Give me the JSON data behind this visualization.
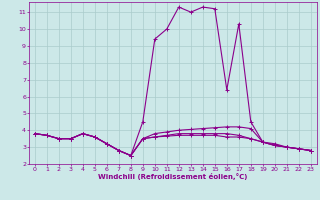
{
  "xlabel": "Windchill (Refroidissement éolien,°C)",
  "bg_color": "#cce8e8",
  "line_color": "#8b008b",
  "grid_color": "#aacccc",
  "xlim": [
    -0.5,
    23.5
  ],
  "ylim": [
    2,
    11.6
  ],
  "xticks": [
    0,
    1,
    2,
    3,
    4,
    5,
    6,
    7,
    8,
    9,
    10,
    11,
    12,
    13,
    14,
    15,
    16,
    17,
    18,
    19,
    20,
    21,
    22,
    23
  ],
  "yticks": [
    2,
    3,
    4,
    5,
    6,
    7,
    8,
    9,
    10,
    11
  ],
  "series": [
    [
      3.8,
      3.7,
      3.5,
      3.5,
      3.8,
      3.6,
      3.2,
      2.8,
      2.5,
      4.5,
      9.4,
      10.0,
      11.3,
      11.0,
      11.3,
      11.2,
      6.4,
      10.3,
      4.5,
      3.3,
      3.1,
      3.0,
      2.9,
      2.8
    ],
    [
      3.8,
      3.7,
      3.5,
      3.5,
      3.8,
      3.6,
      3.2,
      2.8,
      2.5,
      3.5,
      3.8,
      3.9,
      4.0,
      4.05,
      4.1,
      4.15,
      4.2,
      4.2,
      4.1,
      3.3,
      3.2,
      3.0,
      2.9,
      2.8
    ],
    [
      3.8,
      3.7,
      3.5,
      3.5,
      3.8,
      3.6,
      3.2,
      2.8,
      2.5,
      3.5,
      3.6,
      3.7,
      3.8,
      3.8,
      3.8,
      3.8,
      3.8,
      3.7,
      3.5,
      3.3,
      3.1,
      3.0,
      2.9,
      2.8
    ],
    [
      3.8,
      3.7,
      3.5,
      3.5,
      3.8,
      3.6,
      3.2,
      2.8,
      2.5,
      3.5,
      3.6,
      3.65,
      3.7,
      3.7,
      3.7,
      3.7,
      3.6,
      3.6,
      3.5,
      3.3,
      3.1,
      3.0,
      2.9,
      2.8
    ]
  ]
}
